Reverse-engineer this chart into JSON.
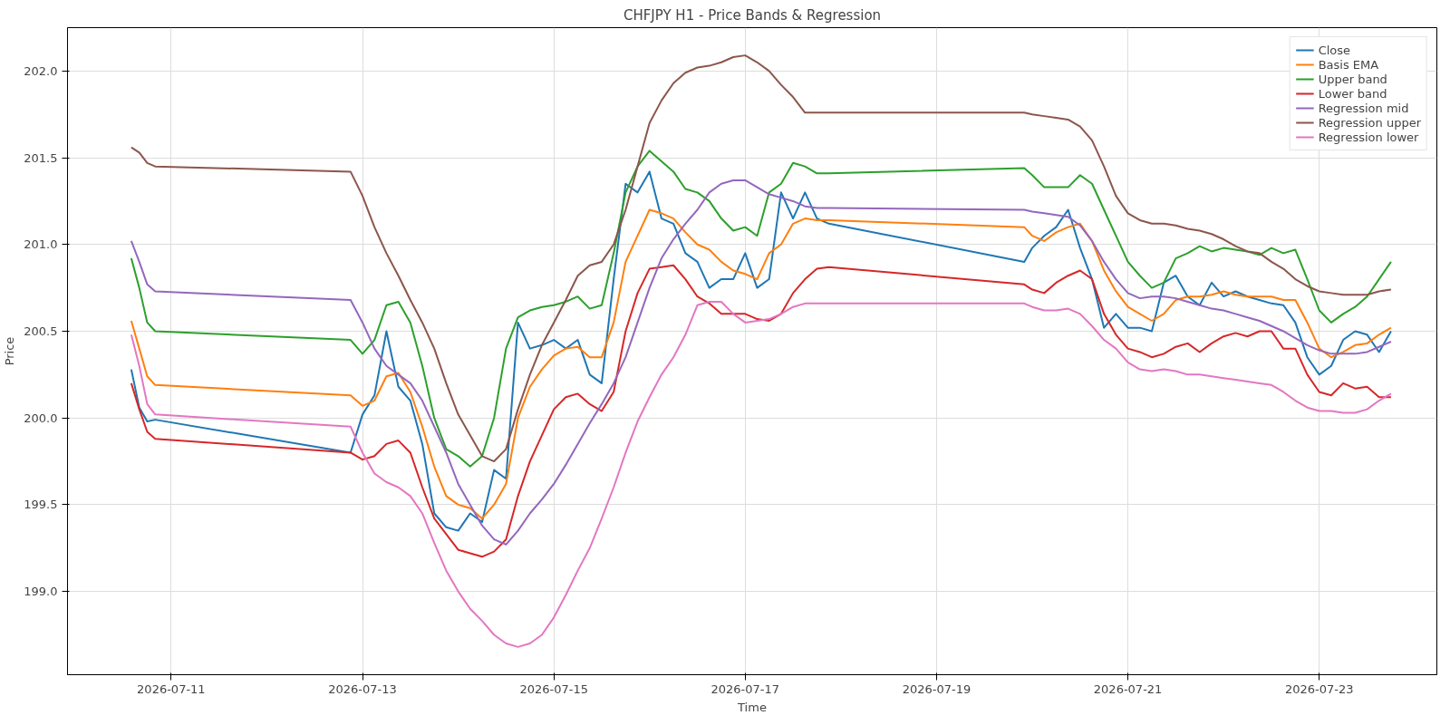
{
  "chart_data": {
    "type": "line",
    "title": "CHFJPY H1 - Price Bands & Regression",
    "xlabel": "Time",
    "ylabel": "Price",
    "x": [
      "2026-07-10T14:00",
      "2026-07-10T16:00",
      "2026-07-10T18:00",
      "2026-07-10T20:00",
      "2026-07-12T21:00",
      "2026-07-13T00:00",
      "2026-07-13T03:00",
      "2026-07-13T06:00",
      "2026-07-13T09:00",
      "2026-07-13T12:00",
      "2026-07-13T15:00",
      "2026-07-13T18:00",
      "2026-07-13T21:00",
      "2026-07-14T00:00",
      "2026-07-14T03:00",
      "2026-07-14T06:00",
      "2026-07-14T09:00",
      "2026-07-14T12:00",
      "2026-07-14T15:00",
      "2026-07-14T18:00",
      "2026-07-14T21:00",
      "2026-07-15T00:00",
      "2026-07-15T03:00",
      "2026-07-15T06:00",
      "2026-07-15T09:00",
      "2026-07-15T12:00",
      "2026-07-15T15:00",
      "2026-07-15T18:00",
      "2026-07-15T21:00",
      "2026-07-16T00:00",
      "2026-07-16T03:00",
      "2026-07-16T06:00",
      "2026-07-16T09:00",
      "2026-07-16T12:00",
      "2026-07-16T15:00",
      "2026-07-16T18:00",
      "2026-07-16T21:00",
      "2026-07-17T00:00",
      "2026-07-17T03:00",
      "2026-07-17T06:00",
      "2026-07-17T09:00",
      "2026-07-17T12:00",
      "2026-07-17T15:00",
      "2026-07-17T18:00",
      "2026-07-17T21:00",
      "2026-07-19T22:00",
      "2026-07-20T00:00",
      "2026-07-20T03:00",
      "2026-07-20T06:00",
      "2026-07-20T09:00",
      "2026-07-20T12:00",
      "2026-07-20T15:00",
      "2026-07-20T18:00",
      "2026-07-20T21:00",
      "2026-07-21T00:00",
      "2026-07-21T03:00",
      "2026-07-21T06:00",
      "2026-07-21T09:00",
      "2026-07-21T12:00",
      "2026-07-21T15:00",
      "2026-07-21T18:00",
      "2026-07-21T21:00",
      "2026-07-22T00:00",
      "2026-07-22T03:00",
      "2026-07-22T06:00",
      "2026-07-22T09:00",
      "2026-07-22T12:00",
      "2026-07-22T15:00",
      "2026-07-22T18:00",
      "2026-07-22T21:00",
      "2026-07-23T00:00",
      "2026-07-23T03:00",
      "2026-07-23T06:00",
      "2026-07-23T09:00",
      "2026-07-23T12:00",
      "2026-07-23T15:00",
      "2026-07-23T18:00"
    ],
    "series": [
      {
        "name": "Close",
        "color": "#1f77b4",
        "values": [
          200.28,
          200.06,
          199.98,
          199.99,
          199.8,
          200.02,
          200.13,
          200.5,
          200.18,
          200.1,
          199.85,
          199.45,
          199.37,
          199.35,
          199.45,
          199.4,
          199.7,
          199.65,
          200.55,
          200.4,
          200.42,
          200.45,
          200.4,
          200.45,
          200.25,
          200.2,
          200.8,
          201.35,
          201.3,
          201.42,
          201.15,
          201.12,
          200.95,
          200.9,
          200.75,
          200.8,
          200.8,
          200.95,
          200.75,
          200.8,
          201.3,
          201.15,
          201.3,
          201.15,
          201.12,
          200.9,
          200.98,
          201.05,
          201.1,
          201.2,
          200.98,
          200.8,
          200.52,
          200.6,
          200.52,
          200.52,
          200.5,
          200.78,
          200.82,
          200.7,
          200.65,
          200.78,
          200.7,
          200.73,
          200.7,
          200.68,
          200.66,
          200.65,
          200.55,
          200.35,
          200.25,
          200.3,
          200.45,
          200.5,
          200.48,
          200.38,
          200.5
        ]
      },
      {
        "name": "Basis EMA",
        "color": "#ff7f0e",
        "values": [
          200.56,
          200.4,
          200.24,
          200.19,
          200.13,
          200.07,
          200.1,
          200.24,
          200.26,
          200.15,
          199.95,
          199.72,
          199.55,
          199.5,
          199.48,
          199.42,
          199.5,
          199.62,
          200.0,
          200.18,
          200.28,
          200.36,
          200.4,
          200.41,
          200.35,
          200.35,
          200.55,
          200.9,
          201.05,
          201.2,
          201.18,
          201.15,
          201.07,
          201.0,
          200.97,
          200.9,
          200.85,
          200.83,
          200.8,
          200.95,
          201.0,
          201.12,
          201.15,
          201.14,
          201.14,
          201.1,
          201.05,
          201.02,
          201.07,
          201.1,
          201.12,
          201.02,
          200.85,
          200.73,
          200.64,
          200.6,
          200.56,
          200.6,
          200.68,
          200.7,
          200.7,
          200.71,
          200.73,
          200.71,
          200.7,
          200.7,
          200.7,
          200.68,
          200.68,
          200.55,
          200.4,
          200.35,
          200.38,
          200.42,
          200.43,
          200.48,
          200.52
        ]
      },
      {
        "name": "Upper band",
        "color": "#2ca02c",
        "values": [
          200.92,
          200.75,
          200.55,
          200.5,
          200.45,
          200.37,
          200.45,
          200.65,
          200.67,
          200.55,
          200.3,
          200.0,
          199.82,
          199.78,
          199.72,
          199.78,
          200.0,
          200.4,
          200.58,
          200.62,
          200.64,
          200.65,
          200.67,
          200.7,
          200.63,
          200.65,
          200.95,
          201.3,
          201.45,
          201.54,
          201.48,
          201.42,
          201.32,
          201.3,
          201.25,
          201.15,
          201.08,
          201.1,
          201.05,
          201.3,
          201.35,
          201.47,
          201.45,
          201.41,
          201.41,
          201.44,
          201.4,
          201.33,
          201.33,
          201.33,
          201.4,
          201.35,
          201.2,
          201.05,
          200.9,
          200.82,
          200.75,
          200.78,
          200.92,
          200.95,
          200.99,
          200.96,
          200.98,
          200.97,
          200.96,
          200.94,
          200.98,
          200.95,
          200.97,
          200.8,
          200.62,
          200.55,
          200.6,
          200.64,
          200.7,
          200.8,
          200.9
        ]
      },
      {
        "name": "Lower band",
        "color": "#d62728",
        "values": [
          200.2,
          200.05,
          199.92,
          199.88,
          199.8,
          199.76,
          199.78,
          199.85,
          199.87,
          199.8,
          199.6,
          199.42,
          199.33,
          199.24,
          199.22,
          199.2,
          199.23,
          199.3,
          199.55,
          199.75,
          199.9,
          200.05,
          200.12,
          200.14,
          200.08,
          200.04,
          200.15,
          200.5,
          200.72,
          200.86,
          200.87,
          200.88,
          200.8,
          200.7,
          200.66,
          200.6,
          200.6,
          200.6,
          200.57,
          200.56,
          200.6,
          200.72,
          200.8,
          200.86,
          200.87,
          200.77,
          200.74,
          200.72,
          200.78,
          200.82,
          200.85,
          200.8,
          200.6,
          200.48,
          200.4,
          200.38,
          200.35,
          200.37,
          200.41,
          200.43,
          200.38,
          200.43,
          200.47,
          200.49,
          200.47,
          200.5,
          200.5,
          200.4,
          200.4,
          200.25,
          200.15,
          200.13,
          200.2,
          200.17,
          200.18,
          200.12,
          200.12
        ]
      },
      {
        "name": "Regression mid",
        "color": "#9467bd",
        "values": [
          201.02,
          200.9,
          200.77,
          200.73,
          200.68,
          200.55,
          200.4,
          200.3,
          200.25,
          200.2,
          200.1,
          199.95,
          199.8,
          199.62,
          199.5,
          199.38,
          199.3,
          199.27,
          199.35,
          199.45,
          199.53,
          199.62,
          199.73,
          199.85,
          199.97,
          200.08,
          200.2,
          200.35,
          200.55,
          200.75,
          200.92,
          201.03,
          201.12,
          201.2,
          201.3,
          201.35,
          201.37,
          201.37,
          201.33,
          201.29,
          201.27,
          201.25,
          201.22,
          201.21,
          201.21,
          201.2,
          201.19,
          201.18,
          201.17,
          201.16,
          201.11,
          201.02,
          200.9,
          200.8,
          200.72,
          200.69,
          200.7,
          200.7,
          200.69,
          200.67,
          200.65,
          200.63,
          200.62,
          200.6,
          200.58,
          200.56,
          200.53,
          200.5,
          200.46,
          200.42,
          200.39,
          200.37,
          200.37,
          200.37,
          200.38,
          200.41,
          200.44
        ]
      },
      {
        "name": "Regression upper",
        "color": "#8c564b",
        "values": [
          201.56,
          201.53,
          201.47,
          201.45,
          201.42,
          201.28,
          201.1,
          200.95,
          200.82,
          200.68,
          200.55,
          200.4,
          200.2,
          200.02,
          199.9,
          199.78,
          199.75,
          199.82,
          200.05,
          200.25,
          200.42,
          200.55,
          200.68,
          200.82,
          200.88,
          200.9,
          201.0,
          201.2,
          201.45,
          201.7,
          201.83,
          201.93,
          201.99,
          202.02,
          202.03,
          202.05,
          202.08,
          202.09,
          202.05,
          202.0,
          201.92,
          201.85,
          201.76,
          201.76,
          201.76,
          201.76,
          201.75,
          201.74,
          201.73,
          201.72,
          201.68,
          201.6,
          201.45,
          201.28,
          201.18,
          201.14,
          201.12,
          201.12,
          201.11,
          201.09,
          201.08,
          201.06,
          201.03,
          200.99,
          200.96,
          200.95,
          200.9,
          200.86,
          200.8,
          200.76,
          200.73,
          200.72,
          200.71,
          200.71,
          200.71,
          200.73,
          200.74
        ]
      },
      {
        "name": "Regression lower",
        "color": "#e377c2",
        "values": [
          200.48,
          200.3,
          200.08,
          200.02,
          199.95,
          199.8,
          199.68,
          199.63,
          199.6,
          199.55,
          199.45,
          199.28,
          199.12,
          199.0,
          198.9,
          198.83,
          198.75,
          198.7,
          198.68,
          198.7,
          198.75,
          198.85,
          198.98,
          199.12,
          199.25,
          199.42,
          199.6,
          199.8,
          199.98,
          200.12,
          200.25,
          200.35,
          200.48,
          200.65,
          200.67,
          200.67,
          200.6,
          200.55,
          200.56,
          200.57,
          200.6,
          200.64,
          200.66,
          200.66,
          200.66,
          200.66,
          200.64,
          200.62,
          200.62,
          200.63,
          200.6,
          200.53,
          200.45,
          200.4,
          200.32,
          200.28,
          200.27,
          200.28,
          200.27,
          200.25,
          200.25,
          200.24,
          200.23,
          200.22,
          200.21,
          200.2,
          200.19,
          200.15,
          200.1,
          200.06,
          200.04,
          200.04,
          200.03,
          200.03,
          200.05,
          200.1,
          200.14
        ]
      }
    ],
    "xlim": [
      "2026-07-09T22:00",
      "2026-07-24T05:30"
    ],
    "xticks": [
      {
        "value": "2026-07-11",
        "label": "2026-07-11"
      },
      {
        "value": "2026-07-13",
        "label": "2026-07-13"
      },
      {
        "value": "2026-07-15",
        "label": "2026-07-15"
      },
      {
        "value": "2026-07-17",
        "label": "2026-07-17"
      },
      {
        "value": "2026-07-19",
        "label": "2026-07-19"
      },
      {
        "value": "2026-07-21",
        "label": "2026-07-21"
      },
      {
        "value": "2026-07-23",
        "label": "2026-07-23"
      }
    ],
    "ylim": [
      198.52,
      202.25
    ],
    "yticks": [
      {
        "value": 199,
        "label": "199.0"
      },
      {
        "value": 199.5,
        "label": "199.5"
      },
      {
        "value": 200,
        "label": "200.0"
      },
      {
        "value": 200.5,
        "label": "200.5"
      },
      {
        "value": 201,
        "label": "201.0"
      },
      {
        "value": 201.5,
        "label": "201.5"
      },
      {
        "value": 202,
        "label": "202.0"
      }
    ],
    "grid": true,
    "legend": "top right",
    "marker": "none",
    "line_style": "solid"
  }
}
